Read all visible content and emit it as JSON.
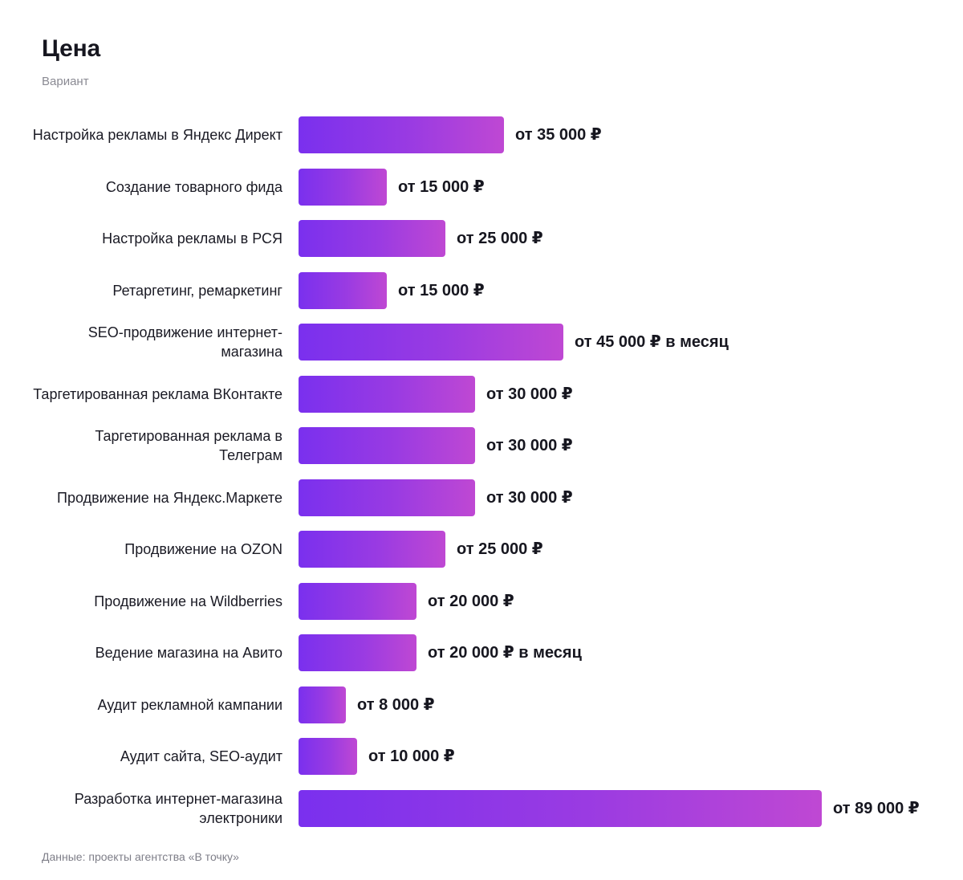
{
  "chart_data": {
    "type": "bar",
    "orientation": "horizontal",
    "title": "Цена",
    "subtitle": "Вариант",
    "source": "Данные: проекты агентства «В точку»",
    "categories": [
      "Настройка рекламы в Яндекс Директ",
      "Создание товарного фида",
      "Настройка рекламы в РСЯ",
      "Ретаргетинг, ремаркетинг",
      "SEO-продвижение интернет-магазина",
      "Таргетированная реклама ВКонтакте",
      "Таргетированная реклама в Телеграм",
      "Продвижение на Яндекс.Маркете",
      "Продвижение на OZON",
      "Продвижение на Wildberries",
      "Ведение магазина на Авито",
      "Аудит рекламной кампании",
      "Аудит сайта, SEO-аудит",
      "Разработка интернет-магазина электроники"
    ],
    "values": [
      35000,
      15000,
      25000,
      15000,
      45000,
      30000,
      30000,
      30000,
      25000,
      20000,
      20000,
      8000,
      10000,
      89000
    ],
    "value_labels": [
      "от 35 000 ₽",
      "от 15 000 ₽",
      "от 25 000 ₽",
      "от 15 000 ₽",
      "от 45 000 ₽ в месяц",
      "от 30 000 ₽",
      "от 30 000 ₽",
      "от 30 000 ₽",
      "от 25 000 ₽",
      "от 20 000 ₽",
      "от 20 000 ₽ в месяц",
      "от 8 000 ₽",
      "от 10 000 ₽",
      "от 89 000 ₽"
    ],
    "xlim": [
      0,
      89000
    ],
    "grid": false,
    "legend": "none",
    "colors": {
      "bar_start": "#7a30ee",
      "bar_end": "#bf48d3",
      "text": "#16161f",
      "muted": "#8a8a93"
    }
  }
}
